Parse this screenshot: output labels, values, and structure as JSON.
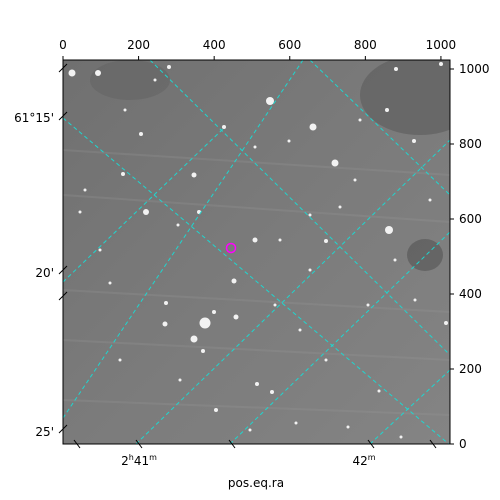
{
  "figure": {
    "xlabel": "pos.eq.ra",
    "pixel_axis_x": {
      "range": [
        0,
        1024
      ],
      "ticks": [
        "0",
        "200",
        "400",
        "600",
        "800",
        "1000"
      ],
      "tick_values": [
        0,
        200,
        400,
        600,
        800,
        1000
      ]
    },
    "pixel_axis_y": {
      "range": [
        0,
        1024
      ],
      "ticks": [
        "0",
        "200",
        "400",
        "600",
        "800",
        "1000"
      ],
      "tick_values": [
        0,
        200,
        400,
        600,
        800,
        1000
      ]
    },
    "dec_ticks": [
      {
        "label": "61°15'"
      },
      {
        "label": "20'"
      },
      {
        "label": "25'"
      }
    ],
    "ra_ticks": [
      {
        "label_main": "2",
        "label_h": "h",
        "label_min": "41",
        "label_m": "m"
      },
      {
        "label_main": "42",
        "label_h": "",
        "label_min": "",
        "label_m": "m"
      }
    ],
    "grid_color": "#1fd6cf",
    "marker_color": "#ff00ff",
    "image_description": "grayscale astronomical field with stars"
  }
}
